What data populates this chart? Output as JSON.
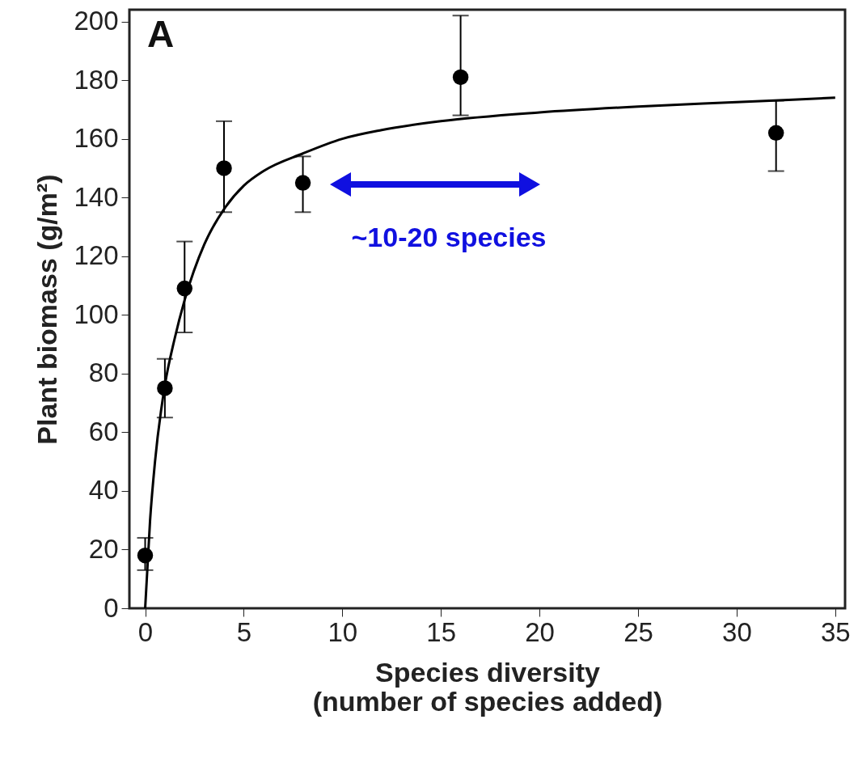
{
  "chart_data": {
    "type": "scatter",
    "xlabel": "Species diversity\n(number of species added)",
    "ylabel": "Plant biomass (g/m²)",
    "xlim": [
      -0.8,
      35.5
    ],
    "ylim": [
      0,
      204
    ],
    "xticks": [
      0,
      5,
      10,
      15,
      20,
      25,
      30,
      35
    ],
    "yticks": [
      0,
      20,
      40,
      60,
      80,
      100,
      120,
      140,
      160,
      180,
      200
    ],
    "grid": false,
    "series": [
      {
        "color": "#000000",
        "marker": "circle",
        "x": [
          0,
          1,
          2,
          4,
          8,
          16,
          32
        ],
        "values": [
          18,
          75,
          109,
          150,
          145,
          181,
          162
        ],
        "errors": [
          [
            13,
            24
          ],
          [
            65,
            85
          ],
          [
            94,
            125
          ],
          [
            135,
            166
          ],
          [
            135,
            154
          ],
          [
            168,
            202
          ],
          [
            149,
            173
          ]
        ]
      },
      {
        "type": "line",
        "color": "#000000",
        "line_style": "solid",
        "marker": "none",
        "x": [
          0,
          0.25,
          0.5,
          1,
          1.5,
          2,
          3,
          4,
          5,
          6,
          8,
          10,
          12,
          15,
          20,
          25,
          30,
          35
        ],
        "values": [
          0,
          30,
          50,
          76,
          92,
          105,
          124,
          136,
          144,
          149,
          155,
          160,
          163,
          166,
          169,
          171,
          172.5,
          174
        ]
      }
    ],
    "annotations": [
      "A",
      "~10-20 species"
    ]
  }
}
